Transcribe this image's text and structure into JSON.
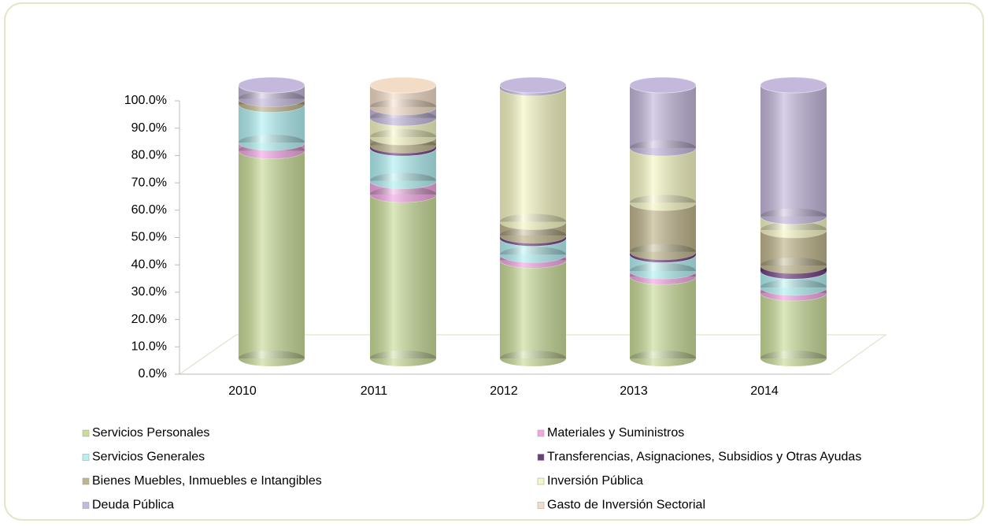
{
  "chart_data": {
    "type": "stacked-cylinder",
    "categories": [
      "2010",
      "2011",
      "2012",
      "2013",
      "2014"
    ],
    "series": [
      {
        "name": "Servicios Personales",
        "color": "#c9dc9a",
        "values": [
          76,
          60,
          36,
          30,
          24
        ]
      },
      {
        "name": "Materiales y Suministros",
        "color": "#f2a7e4",
        "values": [
          3,
          5,
          2,
          2,
          2
        ]
      },
      {
        "name": "Servicios Generales",
        "color": "#b3f1f4",
        "values": [
          14,
          12,
          6,
          6,
          6
        ]
      },
      {
        "name": "Transferencias, Asignaciones, Subsidios y Otras Ayudas",
        "color": "#6e3f7e",
        "values": [
          0,
          1,
          1,
          1,
          2
        ]
      },
      {
        "name": "Bienes Muebles, Inmuebles e Intangibles",
        "color": "#bfb58c",
        "values": [
          2,
          3,
          5,
          18,
          13
        ]
      },
      {
        "name": "Inversión Pública",
        "color": "#f6f7c4",
        "values": [
          0,
          7,
          49,
          20,
          5
        ]
      },
      {
        "name": "Deuda Pública",
        "color": "#c4b8dc",
        "values": [
          5,
          4,
          1,
          23,
          48
        ]
      },
      {
        "name": "Gasto de Inversión Sectorial",
        "color": "#f3dcc6",
        "values": [
          0,
          8,
          0,
          0,
          0
        ]
      }
    ],
    "ylim": [
      0,
      100
    ],
    "yticks": [
      {
        "value": 0,
        "label": "0.0%"
      },
      {
        "value": 10,
        "label": "10.0%"
      },
      {
        "value": 20,
        "label": "20.0%"
      },
      {
        "value": 30,
        "label": "30.0%"
      },
      {
        "value": 40,
        "label": "40.0%"
      },
      {
        "value": 50,
        "label": "50.0%"
      },
      {
        "value": 60,
        "label": "60.0%"
      },
      {
        "value": 70,
        "label": "70.0%"
      },
      {
        "value": 80,
        "label": "80.0%"
      },
      {
        "value": 90,
        "label": "90.0%"
      },
      {
        "value": 100,
        "label": "100.0%"
      }
    ]
  }
}
